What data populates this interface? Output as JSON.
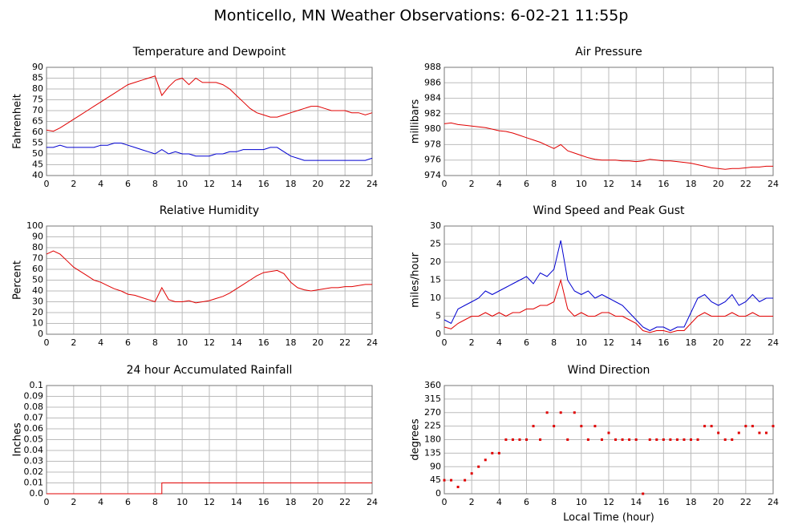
{
  "title": "Monticello, MN Weather Observations: 6-02-21 11:55p",
  "chart_data": [
    {
      "type": "line",
      "title": "Temperature and Dewpoint",
      "ylabel": "Fahrenheit",
      "x": [
        0,
        0.5,
        1,
        1.5,
        2,
        2.5,
        3,
        3.5,
        4,
        4.5,
        5,
        5.5,
        6,
        6.5,
        7,
        7.5,
        8,
        8.5,
        9,
        9.5,
        10,
        10.5,
        11,
        11.5,
        12,
        12.5,
        13,
        13.5,
        14,
        14.5,
        15,
        15.5,
        16,
        16.5,
        17,
        17.5,
        18,
        18.5,
        19,
        19.5,
        20,
        20.5,
        21,
        21.5,
        22,
        22.5,
        23,
        23.5,
        24
      ],
      "series": [
        {
          "name": "Temperature",
          "color": "#e00000",
          "values": [
            61,
            60.5,
            62,
            64,
            66,
            68,
            70,
            72,
            74,
            76,
            78,
            80,
            82,
            83,
            84,
            85,
            86,
            77,
            81,
            84,
            85,
            82,
            85,
            83,
            83,
            83,
            82,
            80,
            77,
            74,
            71,
            69,
            68,
            67,
            67,
            68,
            69,
            70,
            71,
            72,
            72,
            71,
            70,
            70,
            70,
            69,
            69,
            68,
            69
          ]
        },
        {
          "name": "Dewpoint",
          "color": "#0000d0",
          "values": [
            53,
            53,
            54,
            53,
            53,
            53,
            53,
            53,
            54,
            54,
            55,
            55,
            54,
            53,
            52,
            51,
            50,
            52,
            50,
            51,
            50,
            50,
            49,
            49,
            49,
            50,
            50,
            51,
            51,
            52,
            52,
            52,
            52,
            53,
            53,
            51,
            49,
            48,
            47,
            47,
            47,
            47,
            47,
            47,
            47,
            47,
            47,
            47,
            48
          ]
        }
      ],
      "xlim": [
        0,
        24
      ],
      "xticks": [
        0,
        2,
        4,
        6,
        8,
        10,
        12,
        14,
        16,
        18,
        20,
        22,
        24
      ],
      "ylim": [
        40,
        90
      ],
      "yticks": [
        40,
        45,
        50,
        55,
        60,
        65,
        70,
        75,
        80,
        85,
        90
      ],
      "grid": true
    },
    {
      "type": "line",
      "title": "Air Pressure",
      "ylabel": "millibars",
      "x": [
        0,
        0.5,
        1,
        1.5,
        2,
        2.5,
        3,
        3.5,
        4,
        4.5,
        5,
        5.5,
        6,
        6.5,
        7,
        7.5,
        8,
        8.5,
        9,
        9.5,
        10,
        10.5,
        11,
        11.5,
        12,
        12.5,
        13,
        13.5,
        14,
        14.5,
        15,
        15.5,
        16,
        16.5,
        17,
        17.5,
        18,
        18.5,
        19,
        19.5,
        20,
        20.5,
        21,
        21.5,
        22,
        22.5,
        23,
        23.5,
        24
      ],
      "series": [
        {
          "name": "Pressure",
          "color": "#e00000",
          "values": [
            980.7,
            980.8,
            980.6,
            980.5,
            980.4,
            980.3,
            980.2,
            980.0,
            979.8,
            979.7,
            979.5,
            979.2,
            978.9,
            978.6,
            978.3,
            977.9,
            977.5,
            978.0,
            977.2,
            976.9,
            976.6,
            976.3,
            976.1,
            976.0,
            976.0,
            976.0,
            975.9,
            975.9,
            975.8,
            975.9,
            976.1,
            976.0,
            975.9,
            975.9,
            975.8,
            975.7,
            975.6,
            975.4,
            975.2,
            975.0,
            974.9,
            974.8,
            974.9,
            974.9,
            975.0,
            975.1,
            975.1,
            975.2,
            975.2
          ]
        }
      ],
      "xlim": [
        0,
        24
      ],
      "xticks": [
        0,
        2,
        4,
        6,
        8,
        10,
        12,
        14,
        16,
        18,
        20,
        22,
        24
      ],
      "ylim": [
        974,
        988
      ],
      "yticks": [
        974,
        976,
        978,
        980,
        982,
        984,
        986,
        988
      ],
      "grid": true
    },
    {
      "type": "line",
      "title": "Relative Humidity",
      "ylabel": "Percent",
      "x": [
        0,
        0.5,
        1,
        1.5,
        2,
        2.5,
        3,
        3.5,
        4,
        4.5,
        5,
        5.5,
        6,
        6.5,
        7,
        7.5,
        8,
        8.5,
        9,
        9.5,
        10,
        10.5,
        11,
        11.5,
        12,
        12.5,
        13,
        13.5,
        14,
        14.5,
        15,
        15.5,
        16,
        16.5,
        17,
        17.5,
        18,
        18.5,
        19,
        19.5,
        20,
        20.5,
        21,
        21.5,
        22,
        22.5,
        23,
        23.5,
        24
      ],
      "series": [
        {
          "name": "Humidity",
          "color": "#e00000",
          "values": [
            74,
            77,
            74,
            68,
            62,
            58,
            54,
            50,
            48,
            45,
            42,
            40,
            37,
            36,
            34,
            32,
            30,
            43,
            32,
            30,
            30,
            31,
            29,
            30,
            31,
            33,
            35,
            38,
            42,
            46,
            50,
            54,
            57,
            58,
            59,
            56,
            48,
            43,
            41,
            40,
            41,
            42,
            43,
            43,
            44,
            44,
            45,
            46,
            46
          ]
        }
      ],
      "xlim": [
        0,
        24
      ],
      "xticks": [
        0,
        2,
        4,
        6,
        8,
        10,
        12,
        14,
        16,
        18,
        20,
        22,
        24
      ],
      "ylim": [
        0,
        100
      ],
      "yticks": [
        0,
        10,
        20,
        30,
        40,
        50,
        60,
        70,
        80,
        90,
        100
      ],
      "grid": true
    },
    {
      "type": "line",
      "title": "Wind Speed and Peak Gust",
      "ylabel": "miles/hour",
      "x": [
        0,
        0.5,
        1,
        1.5,
        2,
        2.5,
        3,
        3.5,
        4,
        4.5,
        5,
        5.5,
        6,
        6.5,
        7,
        7.5,
        8,
        8.5,
        9,
        9.5,
        10,
        10.5,
        11,
        11.5,
        12,
        12.5,
        13,
        13.5,
        14,
        14.5,
        15,
        15.5,
        16,
        16.5,
        17,
        17.5,
        18,
        18.5,
        19,
        19.5,
        20,
        20.5,
        21,
        21.5,
        22,
        22.5,
        23,
        23.5,
        24
      ],
      "series": [
        {
          "name": "Peak Gust",
          "color": "#0000d0",
          "values": [
            4,
            3,
            7,
            8,
            9,
            10,
            12,
            11,
            12,
            13,
            14,
            15,
            16,
            14,
            17,
            16,
            18,
            26,
            15,
            12,
            11,
            12,
            10,
            11,
            10,
            9,
            8,
            6,
            4,
            2,
            1,
            2,
            2,
            1,
            2,
            2,
            6,
            10,
            11,
            9,
            8,
            9,
            11,
            8,
            9,
            11,
            9,
            10,
            10
          ]
        },
        {
          "name": "Wind Speed",
          "color": "#e00000",
          "values": [
            2,
            1.5,
            3,
            4,
            5,
            5,
            6,
            5,
            6,
            5,
            6,
            6,
            7,
            7,
            8,
            8,
            9,
            15,
            7,
            5,
            6,
            5,
            5,
            6,
            6,
            5,
            5,
            4,
            3,
            1,
            0.5,
            1,
            1,
            0.5,
            1,
            1,
            3,
            5,
            6,
            5,
            5,
            5,
            6,
            5,
            5,
            6,
            5,
            5,
            5
          ]
        }
      ],
      "xlim": [
        0,
        24
      ],
      "xticks": [
        0,
        2,
        4,
        6,
        8,
        10,
        12,
        14,
        16,
        18,
        20,
        22,
        24
      ],
      "ylim": [
        0,
        30
      ],
      "yticks": [
        0,
        5,
        10,
        15,
        20,
        25,
        30
      ],
      "grid": true
    },
    {
      "type": "line",
      "title": "24 hour Accumulated Rainfall",
      "ylabel": "Inches",
      "x": [
        0,
        8.5,
        8.5,
        24
      ],
      "series": [
        {
          "name": "Rainfall",
          "color": "#e00000",
          "values": [
            0,
            0,
            0.01,
            0.01
          ]
        }
      ],
      "xlim": [
        0,
        24
      ],
      "xticks": [
        0,
        2,
        4,
        6,
        8,
        10,
        12,
        14,
        16,
        18,
        20,
        22,
        24
      ],
      "ylim": [
        0,
        0.1
      ],
      "yticks": [
        {
          "value": 0,
          "label": "0.0"
        },
        0.01,
        0.02,
        0.03,
        0.04,
        0.05,
        0.06,
        0.07,
        0.08,
        0.09,
        0.1
      ],
      "grid": true
    },
    {
      "type": "scatter",
      "title": "Wind Direction",
      "ylabel": "degrees",
      "xlabel": "Local Time (hour)",
      "x": [
        0,
        0.5,
        1,
        1.5,
        2,
        2.5,
        3,
        3.5,
        4,
        4.5,
        5,
        5.5,
        6,
        6.5,
        7,
        7.5,
        8,
        8.5,
        9,
        9.5,
        10,
        10.5,
        11,
        11.5,
        12,
        12.5,
        13,
        13.5,
        14,
        14.5,
        15,
        15.5,
        16,
        16.5,
        17,
        17.5,
        18,
        18.5,
        19,
        19.5,
        20,
        20.5,
        21,
        21.5,
        22,
        22.5,
        23,
        23.5,
        24
      ],
      "series": [
        {
          "name": "Direction",
          "color": "#e00000",
          "values": [
            45,
            45,
            22.5,
            45,
            67.5,
            90,
            112.5,
            135,
            135,
            180,
            180,
            180,
            180,
            225,
            180,
            270,
            225,
            270,
            180,
            270,
            225,
            180,
            225,
            180,
            202.5,
            180,
            180,
            180,
            180,
            0,
            180,
            180,
            180,
            180,
            180,
            180,
            180,
            180,
            225,
            225,
            202.5,
            180,
            180,
            202.5,
            225,
            225,
            202.5,
            202.5,
            225
          ]
        }
      ],
      "xlim": [
        0,
        24
      ],
      "xticks": [
        0,
        2,
        4,
        6,
        8,
        10,
        12,
        14,
        16,
        18,
        20,
        22,
        24
      ],
      "ylim": [
        0,
        360
      ],
      "yticks": [
        0,
        45,
        90,
        135,
        180,
        225,
        270,
        315,
        360
      ],
      "grid": true
    }
  ]
}
